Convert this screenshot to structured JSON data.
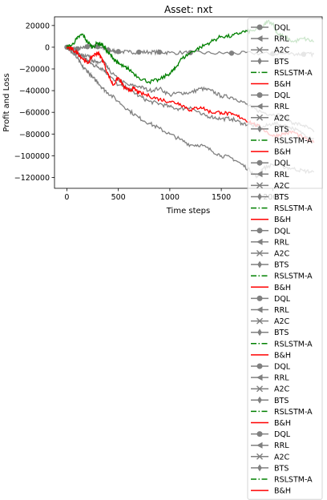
{
  "chart_data": {
    "type": "line",
    "title": "Asset: nxt",
    "xlabel": "Time steps",
    "ylabel": "Profit and Loss",
    "xlim": [
      -120,
      2480
    ],
    "ylim": [
      -130000,
      28000
    ],
    "xticks": [
      0,
      500,
      1000,
      1500,
      2000
    ],
    "xtick_labels": [
      "0",
      "500",
      "1000",
      "1500",
      "2000"
    ],
    "yticks": [
      20000,
      0,
      -20000,
      -40000,
      -60000,
      -80000,
      -100000,
      -120000
    ],
    "ytick_labels": [
      "20000",
      "0",
      "−20000",
      "−40000",
      "−60000",
      "−80000",
      "−100000",
      "−120000"
    ],
    "grid": false,
    "legend_position": "upper right",
    "legend_entries": [
      {
        "label": "DQL",
        "color": "#808080",
        "style": "solid",
        "marker": "circle"
      },
      {
        "label": "RRL",
        "color": "#808080",
        "style": "solid",
        "marker": "triangle-left"
      },
      {
        "label": "A2C",
        "color": "#808080",
        "style": "solid",
        "marker": "x"
      },
      {
        "label": "BTS",
        "color": "#808080",
        "style": "solid",
        "marker": "thin-diamond"
      },
      {
        "label": "RSLSTM-A",
        "color": "#008000",
        "style": "dashdot",
        "marker": "none"
      },
      {
        "label": "B&H",
        "color": "#ff0000",
        "style": "solid",
        "marker": "none"
      },
      {
        "label": "DQL",
        "color": "#808080",
        "style": "solid",
        "marker": "circle"
      },
      {
        "label": "RRL",
        "color": "#808080",
        "style": "solid",
        "marker": "triangle-left"
      },
      {
        "label": "A2C",
        "color": "#808080",
        "style": "solid",
        "marker": "x"
      },
      {
        "label": "BTS",
        "color": "#808080",
        "style": "solid",
        "marker": "thin-diamond"
      },
      {
        "label": "RSLSTM-A",
        "color": "#008000",
        "style": "dashdot",
        "marker": "none"
      },
      {
        "label": "B&H",
        "color": "#ff0000",
        "style": "solid",
        "marker": "none"
      },
      {
        "label": "DQL",
        "color": "#808080",
        "style": "solid",
        "marker": "circle"
      },
      {
        "label": "RRL",
        "color": "#808080",
        "style": "solid",
        "marker": "triangle-left"
      },
      {
        "label": "A2C",
        "color": "#808080",
        "style": "solid",
        "marker": "x"
      },
      {
        "label": "BTS",
        "color": "#808080",
        "style": "solid",
        "marker": "thin-diamond"
      },
      {
        "label": "RSLSTM-A",
        "color": "#008000",
        "style": "dashdot",
        "marker": "none"
      },
      {
        "label": "B&H",
        "color": "#ff0000",
        "style": "solid",
        "marker": "none"
      },
      {
        "label": "DQL",
        "color": "#808080",
        "style": "solid",
        "marker": "circle"
      },
      {
        "label": "RRL",
        "color": "#808080",
        "style": "solid",
        "marker": "triangle-left"
      },
      {
        "label": "A2C",
        "color": "#808080",
        "style": "solid",
        "marker": "x"
      },
      {
        "label": "BTS",
        "color": "#808080",
        "style": "solid",
        "marker": "thin-diamond"
      },
      {
        "label": "RSLSTM-A",
        "color": "#008000",
        "style": "dashdot",
        "marker": "none"
      },
      {
        "label": "B&H",
        "color": "#ff0000",
        "style": "solid",
        "marker": "none"
      },
      {
        "label": "DQL",
        "color": "#808080",
        "style": "solid",
        "marker": "circle"
      },
      {
        "label": "RRL",
        "color": "#808080",
        "style": "solid",
        "marker": "triangle-left"
      },
      {
        "label": "A2C",
        "color": "#808080",
        "style": "solid",
        "marker": "x"
      },
      {
        "label": "BTS",
        "color": "#808080",
        "style": "solid",
        "marker": "thin-diamond"
      },
      {
        "label": "RSLSTM-A",
        "color": "#008000",
        "style": "dashdot",
        "marker": "none"
      },
      {
        "label": "B&H",
        "color": "#ff0000",
        "style": "solid",
        "marker": "none"
      },
      {
        "label": "DQL",
        "color": "#808080",
        "style": "solid",
        "marker": "circle"
      },
      {
        "label": "RRL",
        "color": "#808080",
        "style": "solid",
        "marker": "triangle-left"
      },
      {
        "label": "A2C",
        "color": "#808080",
        "style": "solid",
        "marker": "x"
      },
      {
        "label": "BTS",
        "color": "#808080",
        "style": "solid",
        "marker": "thin-diamond"
      },
      {
        "label": "RSLSTM-A",
        "color": "#008000",
        "style": "dashdot",
        "marker": "none"
      },
      {
        "label": "B&H",
        "color": "#ff0000",
        "style": "solid",
        "marker": "none"
      },
      {
        "label": "DQL",
        "color": "#808080",
        "style": "solid",
        "marker": "circle"
      },
      {
        "label": "RRL",
        "color": "#808080",
        "style": "solid",
        "marker": "triangle-left"
      },
      {
        "label": "A2C",
        "color": "#808080",
        "style": "solid",
        "marker": "x"
      },
      {
        "label": "BTS",
        "color": "#808080",
        "style": "solid",
        "marker": "thin-diamond"
      },
      {
        "label": "RSLSTM-A",
        "color": "#008000",
        "style": "dashdot",
        "marker": "none"
      },
      {
        "label": "B&H",
        "color": "#ff0000",
        "style": "solid",
        "marker": "none"
      }
    ],
    "series": [
      {
        "label": "DQL",
        "color": "#808080",
        "marker": "circle",
        "x": [
          0,
          50,
          100,
          150,
          200,
          250,
          300,
          350,
          400,
          450,
          500,
          600,
          700,
          800,
          900,
          1000,
          1200,
          1400,
          1600,
          1800,
          2000,
          2200,
          2300,
          2400
        ],
        "y": [
          0,
          -1000,
          -1500,
          -1000,
          500,
          1500,
          500,
          -500,
          -2500,
          -3500,
          -4000,
          -4500,
          -4500,
          -4500,
          -4500,
          -5000,
          -5000,
          -5500,
          -5500,
          -5500,
          -6000,
          -6000,
          -6500,
          -6500
        ]
      },
      {
        "label": "RRL",
        "color": "#808080",
        "marker": "triangle-left",
        "x": [
          0,
          50,
          100,
          150,
          200,
          250,
          300,
          350,
          400,
          500,
          600,
          700,
          800,
          900,
          1000,
          1100,
          1200,
          1300,
          1400,
          1500,
          1600,
          1700,
          1800,
          1900,
          2000,
          2100,
          2200,
          2300,
          2400
        ],
        "y": [
          0,
          -3000,
          -6000,
          -8000,
          -7000,
          -12000,
          -15000,
          -12000,
          -20000,
          -30000,
          -35000,
          -36000,
          -40000,
          -38000,
          -44000,
          -42000,
          -42000,
          -38000,
          -40000,
          -45000,
          -46000,
          -50000,
          -56000,
          -60000,
          -62000,
          -63000,
          -70000,
          -72000,
          -78000
        ]
      },
      {
        "label": "A2C",
        "color": "#808080",
        "marker": "x",
        "x": [
          0,
          50,
          100,
          150,
          200,
          250,
          300,
          350,
          400,
          500,
          600,
          700,
          800,
          900,
          1000,
          1100,
          1200,
          1300,
          1400,
          1500,
          1600,
          1700,
          1800,
          1900,
          2000,
          2100,
          2200,
          2300,
          2400
        ],
        "y": [
          0,
          -3000,
          -6000,
          -8000,
          -12000,
          -16000,
          -18000,
          -20000,
          -25000,
          -35000,
          -38000,
          -45000,
          -50000,
          -52000,
          -55000,
          -57000,
          -55000,
          -62000,
          -64000,
          -66000,
          -66000,
          -70000,
          -72000,
          -74000,
          -70000,
          -72000,
          -75000,
          -80000,
          -84000
        ]
      },
      {
        "label": "BTS",
        "color": "#808080",
        "marker": "thin-diamond",
        "x": [
          0,
          50,
          100,
          150,
          200,
          250,
          300,
          350,
          400,
          500,
          600,
          700,
          800,
          900,
          1000,
          1100,
          1200,
          1300,
          1400,
          1500,
          1600,
          1700,
          1800,
          1850,
          1900,
          2000,
          2100,
          2200,
          2300,
          2400
        ],
        "y": [
          0,
          -5000,
          -10000,
          -18000,
          -22000,
          -28000,
          -32000,
          -38000,
          -42000,
          -50000,
          -58000,
          -65000,
          -70000,
          -75000,
          -80000,
          -85000,
          -90000,
          -90000,
          -95000,
          -100000,
          -102000,
          -108000,
          -115000,
          -120000,
          -112000,
          -108000,
          -110000,
          -112000,
          -114000,
          -115000
        ]
      },
      {
        "label": "RSLSTM-A",
        "color": "#008000",
        "marker": "none",
        "x": [
          0,
          50,
          100,
          150,
          200,
          250,
          300,
          350,
          400,
          450,
          500,
          550,
          600,
          700,
          800,
          900,
          1000,
          1050,
          1100,
          1200,
          1300,
          1400,
          1500,
          1600,
          1700,
          1800,
          1900,
          1950,
          2000,
          2050,
          2100,
          2200,
          2300,
          2400
        ],
        "y": [
          0,
          2000,
          8000,
          12000,
          5000,
          0,
          4000,
          2000,
          -5000,
          -10000,
          -15000,
          -18000,
          -20000,
          -28000,
          -32000,
          -30000,
          -24000,
          -20000,
          -12000,
          -5000,
          0,
          5000,
          10000,
          10000,
          14000,
          15000,
          18000,
          24000,
          22000,
          12000,
          10000,
          5000,
          8000,
          5000
        ]
      },
      {
        "label": "B&H",
        "color": "#ff0000",
        "marker": "none",
        "x": [
          0,
          50,
          100,
          150,
          200,
          250,
          300,
          350,
          400,
          450,
          500,
          550,
          600,
          650,
          700,
          800,
          900,
          1000,
          1100,
          1200,
          1300,
          1400,
          1500,
          1600,
          1700,
          1800,
          1900,
          2000,
          2100,
          2200,
          2300,
          2400
        ],
        "y": [
          0,
          -2000,
          -5000,
          -10000,
          -15000,
          -8000,
          -5000,
          -12000,
          -25000,
          -35000,
          -28000,
          -36000,
          -40000,
          -38000,
          -42000,
          -45000,
          -48000,
          -50000,
          -52000,
          -58000,
          -55000,
          -60000,
          -60000,
          -62000,
          -65000,
          -70000,
          -75000,
          -82000,
          -80000,
          -78000,
          -84000,
          -88000
        ]
      }
    ]
  }
}
